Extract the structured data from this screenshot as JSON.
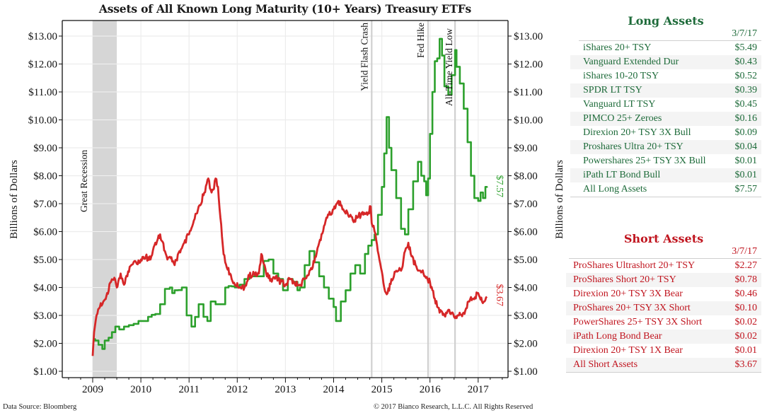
{
  "chart_data": {
    "type": "line",
    "title": "Assets of All Known Long Maturity (10+ Years) Treasury ETFs",
    "ylabel_left": "Billions of Dollars",
    "ylabel_right": "Billions of Dollars",
    "xlabel": "",
    "ylim": [
      0.75,
      13.6
    ],
    "xlim": [
      2008.35,
      2017.45
    ],
    "y_ticks": [
      1,
      2,
      3,
      4,
      5,
      6,
      7,
      8,
      9,
      10,
      11,
      12,
      13
    ],
    "y_tick_labels": [
      "$1.00",
      "$2.00",
      "$3.00",
      "$4.00",
      "$5.00",
      "$6.00",
      "$7.00",
      "$8.00",
      "$9.00",
      "$10.00",
      "$11.00",
      "$12.00",
      "$13.00"
    ],
    "x_ticks": [
      2009,
      2010,
      2011,
      2012,
      2013,
      2014,
      2015,
      2016,
      2017
    ],
    "x_tick_labels": [
      "2009",
      "2010",
      "2011",
      "2012",
      "2013",
      "2014",
      "2015",
      "2016",
      "2017"
    ],
    "grid": true,
    "shaded_regions": [
      {
        "label": "Great Recession",
        "x_start": 2009.0,
        "x_end": 2009.5,
        "color": "#d6d6d6"
      }
    ],
    "event_lines": [
      {
        "label": "Yield Flash Crash",
        "x": 2014.79
      },
      {
        "label": "Fed Hike",
        "x": 2015.96
      },
      {
        "label": "All-Time Yield Low",
        "x": 2016.52
      }
    ],
    "series": [
      {
        "name": "Long Assets",
        "color": "#2ca02c",
        "end_label": "$7.57",
        "step": true,
        "x": [
          2009.0,
          2009.05,
          2009.12,
          2009.2,
          2009.25,
          2009.33,
          2009.4,
          2009.47,
          2009.55,
          2009.65,
          2009.75,
          2009.85,
          2009.95,
          2010.05,
          2010.15,
          2010.3,
          2010.4,
          2010.5,
          2010.6,
          2010.65,
          2010.7,
          2010.85,
          2010.95,
          2011.05,
          2011.2,
          2011.3,
          2011.38,
          2011.45,
          2011.55,
          2011.65,
          2011.75,
          2011.82,
          2011.95,
          2012.05,
          2012.15,
          2012.25,
          2012.35,
          2012.45,
          2012.55,
          2012.65,
          2012.75,
          2012.85,
          2012.95,
          2013.05,
          2013.15,
          2013.25,
          2013.3,
          2013.4,
          2013.5,
          2013.6,
          2013.7,
          2013.8,
          2013.9,
          2014.0,
          2014.05,
          2014.15,
          2014.25,
          2014.35,
          2014.45,
          2014.55,
          2014.65,
          2014.72,
          2014.79,
          2014.85,
          2014.92,
          2015.0,
          2015.05,
          2015.1,
          2015.15,
          2015.2,
          2015.3,
          2015.4,
          2015.48,
          2015.55,
          2015.65,
          2015.75,
          2015.82,
          2015.88,
          2015.92,
          2015.96,
          2016.0,
          2016.05,
          2016.1,
          2016.15,
          2016.2,
          2016.25,
          2016.3,
          2016.38,
          2016.45,
          2016.52,
          2016.55,
          2016.62,
          2016.7,
          2016.78,
          2016.85,
          2016.92,
          2017.0,
          2017.05,
          2017.1,
          2017.15,
          2017.18
        ],
        "values": [
          2.15,
          2.1,
          1.95,
          1.8,
          2.1,
          2.2,
          2.4,
          2.6,
          2.5,
          2.6,
          2.65,
          2.7,
          2.8,
          2.8,
          2.95,
          3.05,
          3.4,
          3.95,
          4.0,
          3.8,
          3.9,
          4.0,
          3.0,
          2.6,
          3.4,
          2.95,
          2.8,
          3.5,
          3.4,
          3.4,
          4.0,
          4.05,
          4.0,
          4.1,
          4.3,
          4.4,
          4.4,
          4.4,
          4.95,
          5.0,
          4.5,
          4.3,
          3.9,
          4.3,
          4.2,
          3.9,
          4.0,
          4.8,
          5.3,
          4.9,
          4.4,
          4.0,
          3.6,
          3.3,
          2.8,
          3.5,
          3.9,
          4.5,
          4.8,
          4.5,
          5.2,
          5.5,
          5.7,
          5.9,
          6.6,
          7.6,
          8.8,
          10.1,
          9.0,
          8.2,
          7.2,
          6.1,
          5.9,
          6.8,
          7.8,
          8.5,
          8.0,
          7.8,
          7.3,
          7.9,
          9.5,
          11.0,
          12.1,
          12.2,
          12.9,
          12.3,
          11.2,
          10.9,
          11.6,
          12.5,
          11.9,
          11.3,
          10.4,
          9.2,
          8.0,
          7.2,
          7.1,
          7.4,
          7.2,
          7.6,
          7.57
        ]
      },
      {
        "name": "Short Assets",
        "color": "#d62728",
        "end_label": "$3.67",
        "step": false,
        "x": [
          2009.0,
          2009.03,
          2009.08,
          2009.15,
          2009.22,
          2009.3,
          2009.38,
          2009.45,
          2009.5,
          2009.58,
          2009.65,
          2009.72,
          2009.8,
          2009.9,
          2010.0,
          2010.1,
          2010.2,
          2010.3,
          2010.4,
          2010.5,
          2010.55,
          2010.6,
          2010.7,
          2010.8,
          2010.9,
          2011.0,
          2011.1,
          2011.2,
          2011.3,
          2011.4,
          2011.45,
          2011.5,
          2011.55,
          2011.6,
          2011.65,
          2011.7,
          2011.75,
          2011.85,
          2011.95,
          2012.05,
          2012.15,
          2012.25,
          2012.35,
          2012.45,
          2012.5,
          2012.6,
          2012.7,
          2012.8,
          2012.9,
          2013.0,
          2013.1,
          2013.2,
          2013.3,
          2013.4,
          2013.5,
          2013.6,
          2013.7,
          2013.8,
          2013.9,
          2014.0,
          2014.1,
          2014.2,
          2014.3,
          2014.4,
          2014.5,
          2014.6,
          2014.7,
          2014.77,
          2014.79,
          2014.85,
          2014.95,
          2015.05,
          2015.12,
          2015.2,
          2015.3,
          2015.4,
          2015.45,
          2015.5,
          2015.55,
          2015.6,
          2015.7,
          2015.8,
          2015.9,
          2016.0,
          2016.1,
          2016.2,
          2016.3,
          2016.4,
          2016.52,
          2016.6,
          2016.7,
          2016.8,
          2016.9,
          2017.0,
          2017.08,
          2017.13,
          2017.18
        ],
        "values": [
          1.55,
          2.4,
          3.0,
          3.3,
          3.5,
          3.8,
          4.2,
          4.35,
          4.0,
          4.5,
          4.1,
          4.4,
          4.8,
          4.9,
          5.0,
          5.1,
          5.0,
          5.6,
          5.9,
          5.3,
          5.0,
          5.1,
          4.8,
          5.3,
          5.6,
          5.9,
          6.4,
          6.9,
          7.3,
          7.9,
          7.5,
          7.5,
          7.9,
          7.6,
          6.5,
          5.5,
          4.9,
          4.5,
          4.1,
          4.0,
          4.0,
          4.4,
          4.5,
          4.5,
          5.2,
          4.5,
          4.3,
          4.4,
          4.2,
          4.1,
          4.3,
          4.1,
          4.1,
          4.3,
          4.6,
          4.9,
          5.6,
          6.2,
          6.6,
          6.8,
          7.1,
          6.8,
          6.6,
          6.4,
          6.5,
          6.7,
          6.6,
          6.9,
          6.3,
          6.0,
          5.0,
          4.0,
          3.8,
          4.3,
          4.6,
          4.6,
          5.0,
          5.4,
          5.6,
          5.2,
          4.8,
          4.6,
          4.4,
          4.2,
          3.6,
          3.1,
          3.0,
          3.2,
          2.9,
          3.0,
          3.1,
          3.5,
          3.6,
          3.8,
          3.5,
          3.5,
          3.67
        ]
      }
    ]
  },
  "footer": {
    "source": "Data Source: Bloomberg",
    "copyright": "© 2017 Bianco Research, L.L.C. All Rights Reserved"
  },
  "long_table": {
    "title": "Long Assets",
    "date": "3/7/17",
    "rows": [
      {
        "name": "iShares 20+ TSY",
        "value": "$5.49"
      },
      {
        "name": "Vanguard Extended Dur",
        "value": "$0.43"
      },
      {
        "name": "iShares 10-20 TSY",
        "value": "$0.52"
      },
      {
        "name": "SPDR LT TSY",
        "value": "$0.39"
      },
      {
        "name": "Vanguard LT TSY",
        "value": "$0.45"
      },
      {
        "name": "PIMCO 25+ Zeroes",
        "value": "$0.16"
      },
      {
        "name": "Direxion 20+ TSY 3X Bull",
        "value": "$0.09"
      },
      {
        "name": "Proshares Ultra 20+ TSY",
        "value": "$0.04"
      },
      {
        "name": "Powershares 25+ TSY 3X Bull",
        "value": "$0.01"
      },
      {
        "name": "iPath LT Bond Bull",
        "value": "$0.01"
      },
      {
        "name": "All Long Assets",
        "value": "$7.57"
      }
    ]
  },
  "short_table": {
    "title": "Short Assets",
    "date": "3/7/17",
    "rows": [
      {
        "name": "ProShares Ultrashort 20+ TSY",
        "value": "$2.27"
      },
      {
        "name": "ProShares Short 20+ TSY",
        "value": "$0.78"
      },
      {
        "name": "Direxion 20+ TSY 3X Bear",
        "value": "$0.46"
      },
      {
        "name": "ProShares 20+ TSY 3X Short",
        "value": "$0.10"
      },
      {
        "name": "PowerShares 25+ TSY 3X Short",
        "value": "$0.02"
      },
      {
        "name": "iPath Long Bond Bear",
        "value": "$0.02"
      },
      {
        "name": "Direxion 20+ TSY 1X Bear",
        "value": "$0.01"
      },
      {
        "name": "All Short Assets",
        "value": "$3.67"
      }
    ]
  }
}
